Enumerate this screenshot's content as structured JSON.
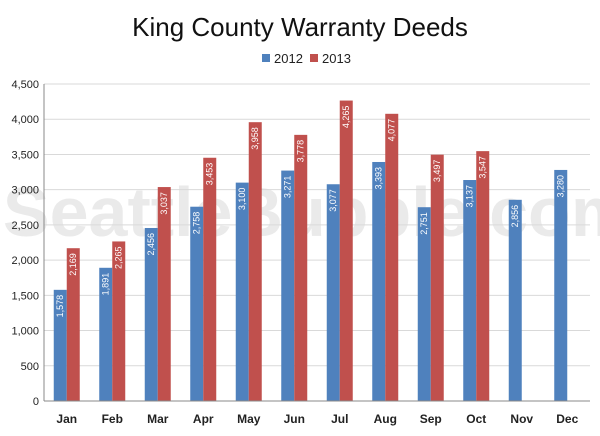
{
  "chart_data": {
    "type": "bar",
    "title": "King County Warranty Deeds",
    "categories": [
      "Jan",
      "Feb",
      "Mar",
      "Apr",
      "May",
      "Jun",
      "Jul",
      "Aug",
      "Sep",
      "Oct",
      "Nov",
      "Dec"
    ],
    "series": [
      {
        "name": "2012",
        "color": "#4f81bd",
        "values": [
          1578,
          1891,
          2456,
          2758,
          3100,
          3271,
          3077,
          3393,
          2751,
          3137,
          2856,
          3280
        ],
        "labels": [
          "1,578",
          "1,891",
          "2,456",
          "2,758",
          "3,100",
          "3,271",
          "3,077",
          "3,393",
          "2,751",
          "3,137",
          "2,856",
          "3,280"
        ]
      },
      {
        "name": "2013",
        "color": "#c0504d",
        "values": [
          2169,
          2265,
          3037,
          3453,
          3958,
          3778,
          4265,
          4077,
          3497,
          3547,
          null,
          null
        ],
        "labels": [
          "2,169",
          "2,265",
          "3,037",
          "3,453",
          "3,958",
          "3,778",
          "4,265",
          "4,077",
          "3,497",
          "3,547",
          "",
          ""
        ]
      }
    ],
    "yticks": [
      "0",
      "500",
      "1,000",
      "1,500",
      "2,000",
      "2,500",
      "3,000",
      "3,500",
      "4,000",
      "4,500"
    ],
    "ylim": [
      0,
      4500
    ],
    "grid": true,
    "legend_position": "top-center",
    "watermark": "SeattleBubble.com"
  }
}
